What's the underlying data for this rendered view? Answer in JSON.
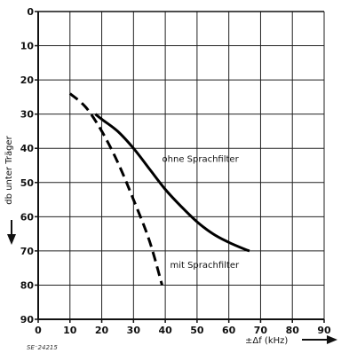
{
  "chart_data": {
    "type": "line",
    "xlabel": "±Δf (kHz)",
    "ylabel": "db unter Träger",
    "xlim": [
      0,
      90
    ],
    "ylim": [
      0,
      90
    ],
    "y_inverted": true,
    "grid": true,
    "xticks": [
      "0",
      "10",
      "20",
      "30",
      "40",
      "50",
      "60",
      "70",
      "80",
      "90"
    ],
    "yticks": [
      "0",
      "10",
      "20",
      "30",
      "40",
      "50",
      "60",
      "70",
      "80",
      "90"
    ],
    "series": [
      {
        "name": "ohne Sprachfilter",
        "style": "solid",
        "x": [
          18,
          20,
          25,
          30,
          35,
          40,
          45,
          50,
          55,
          60,
          65,
          66.5
        ],
        "y": [
          30,
          31.5,
          35,
          40,
          46,
          52,
          57,
          61.5,
          65,
          67.5,
          69.5,
          70
        ]
      },
      {
        "name": "mit Sprachfilter",
        "style": "dashed",
        "x": [
          10,
          15,
          20,
          25,
          30,
          35,
          39
        ],
        "y": [
          24,
          28,
          35,
          44,
          55,
          67,
          80
        ]
      }
    ],
    "annotations": [
      {
        "text": "ohne Sprachfilter",
        "x": 39,
        "y": 44
      },
      {
        "text": "mit Sprachfilter",
        "x": 41.5,
        "y": 75
      }
    ],
    "footnote": "SE⁻24215"
  }
}
